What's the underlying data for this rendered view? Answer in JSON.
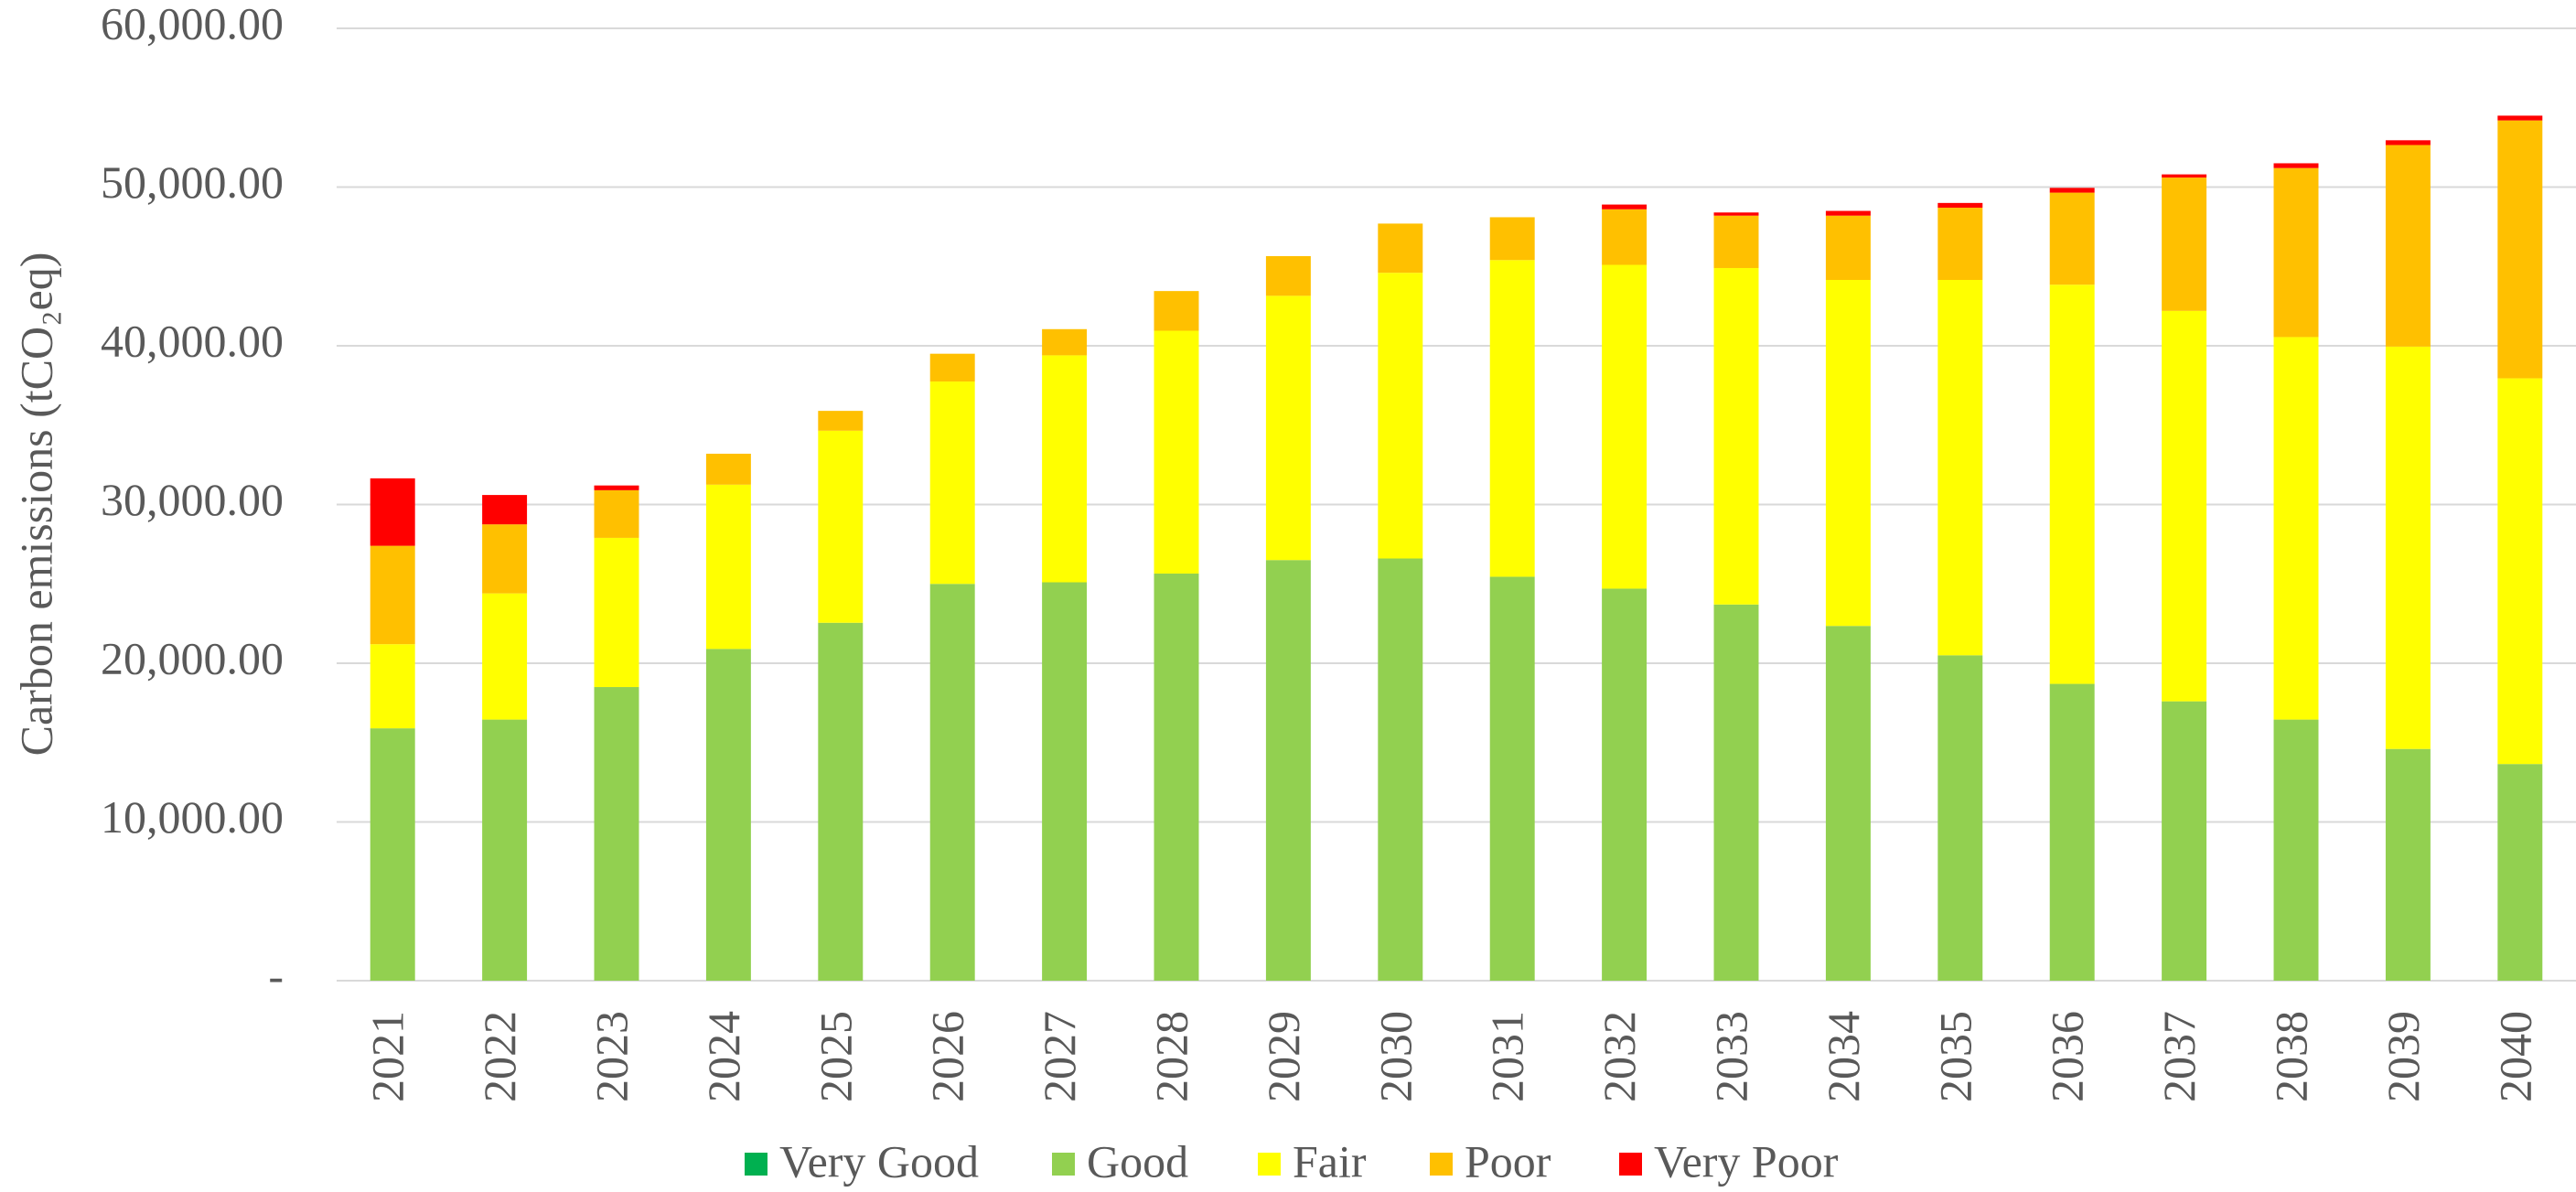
{
  "chart_data": {
    "type": "stacked_bar",
    "y_label": "Carbon emissions (tCO₂eq)",
    "categories": [
      "2021",
      "2022",
      "2023",
      "2024",
      "2025",
      "2026",
      "2027",
      "2028",
      "2029",
      "2030",
      "2031",
      "2032",
      "2033",
      "2034",
      "2035",
      "2036",
      "2037",
      "2038",
      "2039",
      "2040"
    ],
    "series": [
      {
        "name": "Very Good",
        "color": "#00b050",
        "values": [
          0,
          0,
          0,
          0,
          0,
          0,
          0,
          0,
          0,
          0,
          0,
          0,
          0,
          0,
          0,
          0,
          0,
          0,
          0,
          0
        ]
      },
      {
        "name": "Good",
        "color": "#92d050",
        "values": [
          15900,
          16450,
          18500,
          20900,
          22550,
          25000,
          25100,
          25650,
          26500,
          26600,
          25450,
          24700,
          23700,
          22350,
          20500,
          18700,
          17600,
          16450,
          14600,
          13650
        ]
      },
      {
        "name": "Fair",
        "color": "#ffff00",
        "values": [
          5300,
          7950,
          9400,
          10350,
          12100,
          12750,
          14300,
          15300,
          16650,
          18000,
          19950,
          20400,
          21200,
          21800,
          23650,
          25150,
          24600,
          24100,
          25350,
          24300
        ]
      },
      {
        "name": "Poor",
        "color": "#ffc000",
        "values": [
          6200,
          4350,
          3000,
          1950,
          1250,
          1750,
          1650,
          2500,
          2500,
          3100,
          2700,
          3500,
          3300,
          4050,
          4550,
          5800,
          8400,
          10650,
          12700,
          16250
        ]
      },
      {
        "name": "Very Poor",
        "color": "#ff0000",
        "values": [
          4250,
          1850,
          300,
          0,
          0,
          0,
          0,
          0,
          0,
          0,
          0,
          300,
          200,
          300,
          300,
          300,
          200,
          300,
          300,
          300
        ]
      }
    ],
    "ylim": [
      0,
      60000
    ],
    "yticks": [
      {
        "value": 0,
        "label": "-"
      },
      {
        "value": 10000,
        "label": "10,000.00"
      },
      {
        "value": 20000,
        "label": "20,000.00"
      },
      {
        "value": 30000,
        "label": "30,000.00"
      },
      {
        "value": 40000,
        "label": "40,000.00"
      },
      {
        "value": 50000,
        "label": "50,000.00"
      },
      {
        "value": 60000,
        "label": "60,000.00"
      }
    ],
    "grid": true,
    "legend": "bottom"
  }
}
